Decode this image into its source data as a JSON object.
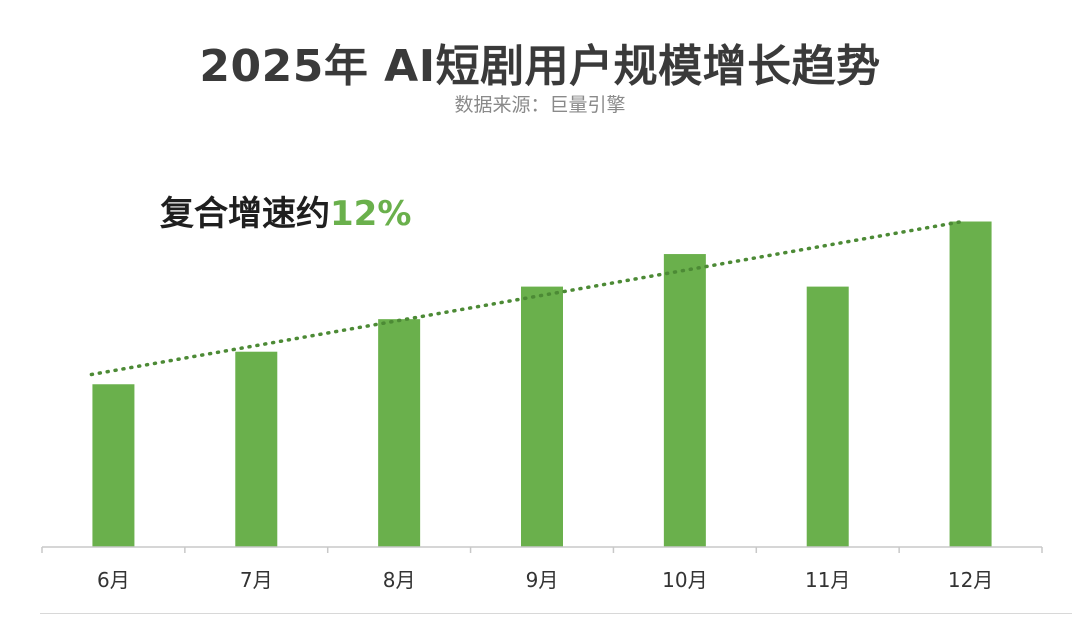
{
  "header": {
    "title": "2025年 AI短剧用户规模增长趋势",
    "subtitle": "数据来源：巨量引擎"
  },
  "annotation": {
    "label": "复合增速约",
    "value": "12%"
  },
  "chart_data": {
    "type": "bar",
    "categories": [
      "6月",
      "7月",
      "8月",
      "9月",
      "10月",
      "11月",
      "12月"
    ],
    "values": [
      5,
      6,
      7,
      8,
      9,
      8,
      10
    ],
    "ylim": [
      0,
      10.2
    ],
    "grid": false,
    "trendline": {
      "style": "dotted",
      "start": 5.3,
      "end": 10
    },
    "colors": {
      "bar": "#6ab04c",
      "trend": "#4c8a35",
      "axis": "#c8c8c8"
    }
  }
}
